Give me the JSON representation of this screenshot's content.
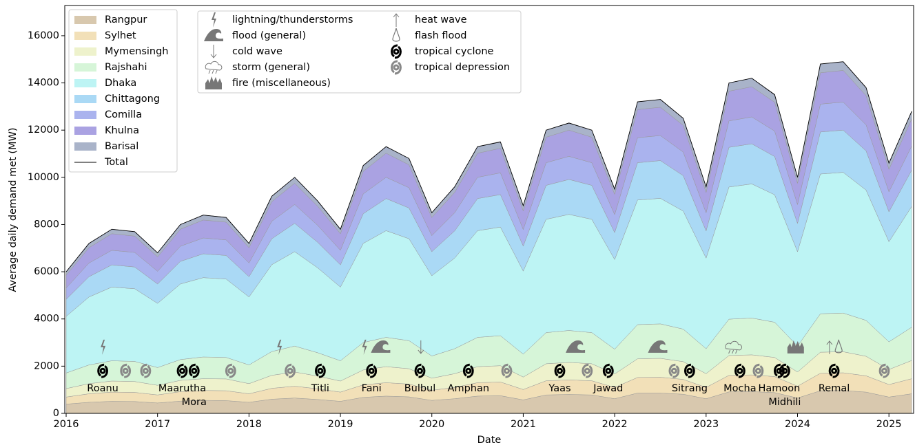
{
  "chart_data": {
    "type": "area",
    "xlabel": "Date",
    "ylabel": "Average daily demand met (MW)",
    "x": [
      2016.0,
      2016.25,
      2016.5,
      2016.75,
      2017.0,
      2017.25,
      2017.5,
      2017.75,
      2018.0,
      2018.25,
      2018.5,
      2018.75,
      2019.0,
      2019.25,
      2019.5,
      2019.75,
      2020.0,
      2020.25,
      2020.5,
      2020.75,
      2021.0,
      2021.25,
      2021.5,
      2021.75,
      2022.0,
      2022.25,
      2022.5,
      2022.75,
      2023.0,
      2023.25,
      2023.5,
      2023.75,
      2024.0,
      2024.25,
      2024.5,
      2024.75,
      2025.0,
      2025.25
    ],
    "xlim": [
      2015.985,
      2025.27
    ],
    "xticks": [
      2016,
      2017,
      2018,
      2019,
      2020,
      2021,
      2022,
      2023,
      2024,
      2025
    ],
    "ylim": [
      0,
      17280
    ],
    "yticks": [
      0,
      2000,
      4000,
      6000,
      8000,
      10000,
      12000,
      14000,
      16000
    ],
    "series": [
      {
        "name": "Rangpur",
        "color": "#d8c8ae",
        "values": [
          390,
          470,
          510,
          500,
          440,
          520,
          550,
          540,
          470,
          600,
          650,
          590,
          510,
          680,
          730,
          700,
          550,
          620,
          730,
          750,
          570,
          780,
          800,
          780,
          620,
          860,
          860,
          810,
          620,
          910,
          920,
          880,
          650,
          960,
          970,
          900,
          690,
          830
        ]
      },
      {
        "name": "Sylhet",
        "color": "#f2e0b8",
        "values": [
          300,
          360,
          390,
          390,
          340,
          400,
          420,
          420,
          360,
          460,
          500,
          450,
          390,
          530,
          570,
          540,
          430,
          480,
          570,
          580,
          440,
          600,
          620,
          600,
          480,
          660,
          670,
          630,
          480,
          700,
          710,
          680,
          500,
          740,
          750,
          690,
          530,
          640
        ]
      },
      {
        "name": "Mymensingh",
        "color": "#eef2cc",
        "values": [
          360,
          430,
          470,
          460,
          410,
          480,
          500,
          500,
          430,
          550,
          600,
          540,
          470,
          630,
          680,
          650,
          510,
          580,
          680,
          690,
          530,
          720,
          740,
          720,
          570,
          790,
          800,
          750,
          580,
          840,
          850,
          810,
          600,
          890,
          890,
          830,
          640,
          770
        ]
      },
      {
        "name": "Rajshahi",
        "color": "#d6f5d8",
        "values": [
          660,
          790,
          860,
          850,
          750,
          880,
          920,
          910,
          790,
          1010,
          1100,
          990,
          860,
          1160,
          1240,
          1190,
          940,
          1060,
          1240,
          1270,
          970,
          1320,
          1350,
          1320,
          1050,
          1450,
          1460,
          1380,
          1060,
          1540,
          1560,
          1490,
          1100,
          1630,
          1640,
          1520,
          1170,
          1410
        ]
      },
      {
        "name": "Dhaka",
        "color": "#bdf4f4",
        "values": [
          2400,
          2880,
          3120,
          3080,
          2720,
          3200,
          3360,
          3320,
          2880,
          3680,
          4000,
          3600,
          3120,
          4200,
          4520,
          4320,
          3400,
          3840,
          4520,
          4600,
          3520,
          4800,
          4920,
          4800,
          3800,
          5280,
          5320,
          5000,
          3840,
          5600,
          5680,
          5400,
          4000,
          5920,
          5960,
          5520,
          4240,
          5120
        ]
      },
      {
        "name": "Chittagong",
        "color": "#aad9f5",
        "values": [
          720,
          860,
          940,
          920,
          820,
          960,
          1010,
          1000,
          860,
          1100,
          1200,
          1080,
          940,
          1260,
          1360,
          1300,
          1020,
          1150,
          1360,
          1380,
          1060,
          1440,
          1480,
          1440,
          1140,
          1580,
          1600,
          1500,
          1150,
          1680,
          1700,
          1620,
          1200,
          1780,
          1790,
          1660,
          1270,
          1540
        ]
      },
      {
        "name": "Comilla",
        "color": "#aab3ee",
        "values": [
          480,
          580,
          620,
          620,
          540,
          640,
          670,
          660,
          580,
          740,
          800,
          720,
          620,
          840,
          900,
          860,
          680,
          770,
          900,
          920,
          700,
          960,
          980,
          960,
          760,
          1060,
          1060,
          1000,
          770,
          1120,
          1140,
          1080,
          800,
          1180,
          1190,
          1100,
          850,
          1020
        ]
      },
      {
        "name": "Khulna",
        "color": "#aaa2e2",
        "values": [
          540,
          650,
          700,
          690,
          610,
          720,
          760,
          750,
          650,
          830,
          900,
          810,
          700,
          950,
          1020,
          970,
          770,
          860,
          1020,
          1040,
          790,
          1080,
          1110,
          1080,
          860,
          1190,
          1200,
          1130,
          860,
          1260,
          1280,
          1220,
          900,
          1330,
          1340,
          1240,
          950,
          1150
        ]
      },
      {
        "name": "Barisal",
        "color": "#a9b3c9",
        "values": [
          150,
          180,
          200,
          190,
          170,
          200,
          210,
          210,
          180,
          230,
          250,
          230,
          200,
          260,
          280,
          270,
          210,
          240,
          280,
          290,
          220,
          300,
          310,
          300,
          240,
          330,
          330,
          310,
          240,
          350,
          360,
          340,
          250,
          370,
          370,
          350,
          270,
          320
        ]
      },
      {
        "name": "Total",
        "color": "#000000",
        "type": "line",
        "values": [
          6000,
          7200,
          7800,
          7700,
          6800,
          8000,
          8400,
          8300,
          7200,
          9200,
          10000,
          9000,
          7800,
          10500,
          11300,
          10800,
          8500,
          9600,
          11300,
          11500,
          8800,
          12000,
          12300,
          12000,
          9500,
          13200,
          13300,
          12500,
          9600,
          14000,
          14200,
          13500,
          10000,
          14800,
          14900,
          13800,
          10600,
          12800
        ]
      }
    ],
    "event_types": [
      "lightning/thunderstorms",
      "flood (general)",
      "cold wave",
      "storm (general)",
      "fire (miscellaneous)",
      "heat wave",
      "flash flood",
      "tropical cyclone",
      "tropical depression"
    ],
    "events": [
      {
        "type": 0,
        "x": 2016.4
      },
      {
        "type": 7,
        "x": 2016.4,
        "label": "Roanu"
      },
      {
        "type": 8,
        "x": 2016.65
      },
      {
        "type": 8,
        "x": 2016.87
      },
      {
        "type": 7,
        "x": 2017.27,
        "label": "Maarutha"
      },
      {
        "type": 7,
        "x": 2017.4,
        "label": "Mora"
      },
      {
        "type": 8,
        "x": 2017.8
      },
      {
        "type": 0,
        "x": 2018.33
      },
      {
        "type": 8,
        "x": 2018.45
      },
      {
        "type": 7,
        "x": 2018.78,
        "label": "Titli"
      },
      {
        "type": 0,
        "x": 2019.26
      },
      {
        "type": 1,
        "x": 2019.44
      },
      {
        "type": 7,
        "x": 2019.34,
        "label": "Fani"
      },
      {
        "type": 2,
        "x": 2019.88
      },
      {
        "type": 7,
        "x": 2019.87,
        "label": "Bulbul"
      },
      {
        "type": 7,
        "x": 2020.4,
        "label": "Amphan"
      },
      {
        "type": 8,
        "x": 2020.82
      },
      {
        "type": 7,
        "x": 2021.4,
        "label": "Yaas"
      },
      {
        "type": 1,
        "x": 2021.57
      },
      {
        "type": 8,
        "x": 2021.7
      },
      {
        "type": 7,
        "x": 2021.93,
        "label": "Jawad"
      },
      {
        "type": 1,
        "x": 2022.47
      },
      {
        "type": 8,
        "x": 2022.65
      },
      {
        "type": 7,
        "x": 2022.82,
        "label": "Sitrang"
      },
      {
        "type": 3,
        "x": 2023.3
      },
      {
        "type": 7,
        "x": 2023.37,
        "label": "Mocha"
      },
      {
        "type": 8,
        "x": 2023.57
      },
      {
        "type": 7,
        "x": 2023.8,
        "label": "Hamoon"
      },
      {
        "type": 7,
        "x": 2023.86,
        "label": "Midhili"
      },
      {
        "type": 4,
        "x": 2023.98
      },
      {
        "type": 5,
        "x": 2024.35
      },
      {
        "type": 6,
        "x": 2024.45
      },
      {
        "type": 7,
        "x": 2024.4,
        "label": "Remal"
      },
      {
        "type": 8,
        "x": 2024.95
      }
    ]
  }
}
